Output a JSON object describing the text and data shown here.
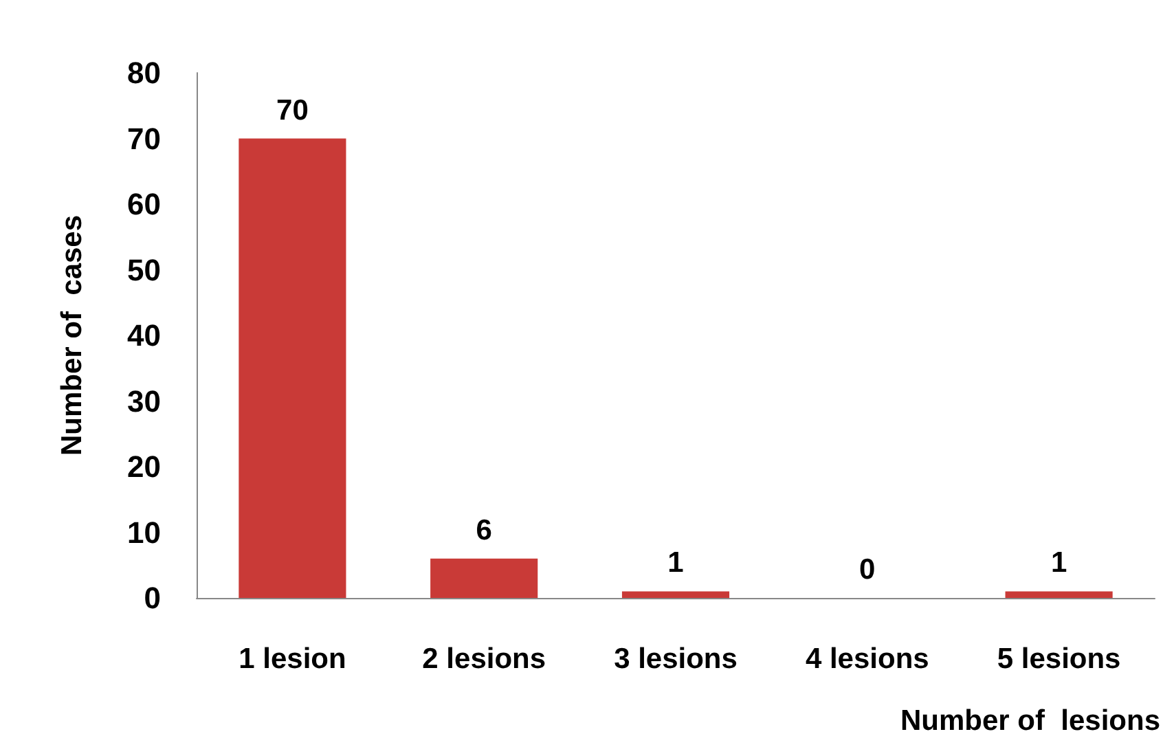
{
  "chart_data": {
    "type": "bar",
    "xlabel": "Number of  lesions",
    "ylabel": "Number of  cases",
    "categories": [
      "1 lesion",
      "2 lesions",
      "3 lesions",
      "4 lesions",
      "5 lesions"
    ],
    "values": [
      70,
      6,
      1,
      0,
      1
    ],
    "color": "#c93a37",
    "ylim": [
      0,
      80
    ],
    "yticks": [
      0,
      10,
      20,
      30,
      40,
      50,
      60,
      70,
      80
    ],
    "data_labels": true
  }
}
